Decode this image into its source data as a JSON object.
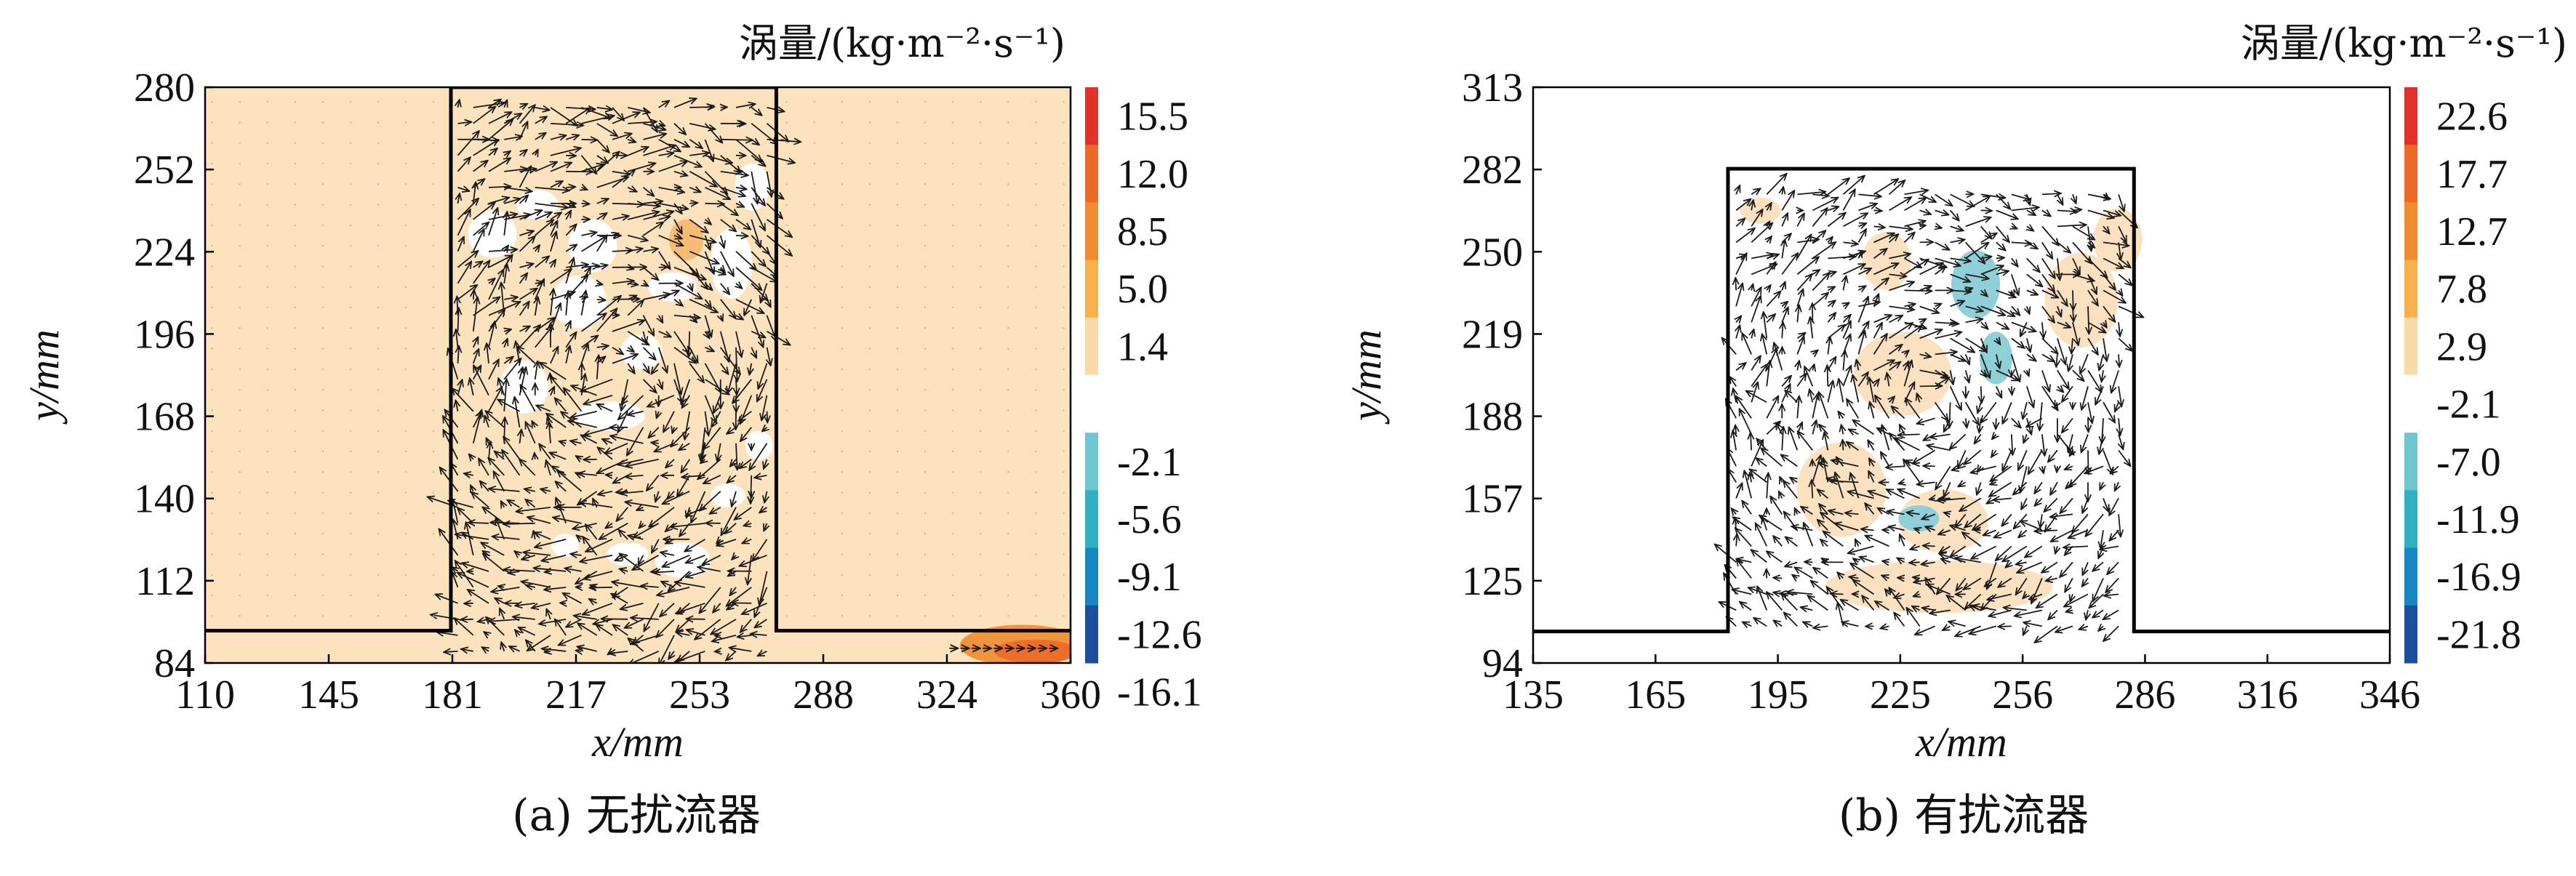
{
  "chart_data": [
    {
      "type": "heatmap",
      "panel": "a",
      "caption": "(a) 无扰流器",
      "xlabel": "x/mm",
      "ylabel": "y/mm",
      "xticks": [
        "110",
        "145",
        "181",
        "217",
        "253",
        "288",
        "324",
        "360"
      ],
      "yticks": [
        "84",
        "112",
        "140",
        "168",
        "196",
        "224",
        "252",
        "280"
      ],
      "xlim": [
        110,
        360
      ],
      "ylim": [
        84,
        280
      ],
      "colorbar_title": "涡量/(kg·m⁻²·s⁻¹)",
      "colorbar_labels": [
        "15.5",
        "12.0",
        "8.5",
        "5.0",
        "1.4",
        "-2.1",
        "-5.6",
        "-9.1",
        "-12.6",
        "-16.1"
      ],
      "colorbar_colors": [
        "#e2312b",
        "#ec6a25",
        "#f08c2e",
        "#f7b04a",
        "#fbd9a6",
        "#ffffff",
        "#6ec6d2",
        "#2fb0c3",
        "#1587c4",
        "#1c4e9e"
      ],
      "background_color": "#fde3bd",
      "cavity_outline_x": [
        110,
        181,
        181,
        275,
        275,
        360
      ],
      "cavity_outline_y": [
        95,
        95,
        280,
        280,
        95,
        95
      ],
      "zero_regions": [
        {
          "x": 193,
          "y": 230,
          "rx": 7,
          "ry": 8
        },
        {
          "x": 206,
          "y": 240,
          "rx": 6,
          "ry": 5
        },
        {
          "x": 222,
          "y": 226,
          "rx": 7,
          "ry": 9
        },
        {
          "x": 218,
          "y": 207,
          "rx": 8,
          "ry": 9
        },
        {
          "x": 202,
          "y": 178,
          "rx": 7,
          "ry": 9
        },
        {
          "x": 227,
          "y": 168,
          "rx": 10,
          "ry": 5
        },
        {
          "x": 236,
          "y": 190,
          "rx": 6,
          "ry": 6
        },
        {
          "x": 245,
          "y": 212,
          "rx": 7,
          "ry": 5
        },
        {
          "x": 262,
          "y": 220,
          "rx": 6,
          "ry": 12
        },
        {
          "x": 268,
          "y": 246,
          "rx": 5,
          "ry": 8
        },
        {
          "x": 232,
          "y": 121,
          "rx": 6,
          "ry": 4
        },
        {
          "x": 248,
          "y": 119,
          "rx": 8,
          "ry": 6
        },
        {
          "x": 214,
          "y": 124,
          "rx": 4,
          "ry": 4
        },
        {
          "x": 261,
          "y": 141,
          "rx": 5,
          "ry": 4
        },
        {
          "x": 270,
          "y": 158,
          "rx": 4,
          "ry": 5
        }
      ],
      "positive_spots": [
        {
          "x": 249,
          "y": 228,
          "rx": 5,
          "ry": 7,
          "color": "#f5b76a"
        },
        {
          "x": 346,
          "y": 90,
          "rx": 18,
          "ry": 7,
          "color": "#f08c2e"
        },
        {
          "x": 350,
          "y": 88,
          "rx": 12,
          "ry": 4,
          "color": "#ec6a25"
        }
      ],
      "vector_region": {
        "x0": 183,
        "x1": 273,
        "y0": 88,
        "y1": 276
      }
    },
    {
      "type": "heatmap",
      "panel": "b",
      "caption": "(b) 有扰流器",
      "xlabel": "x/mm",
      "ylabel": "y/mm",
      "xticks": [
        "135",
        "165",
        "195",
        "225",
        "256",
        "286",
        "316",
        "346"
      ],
      "yticks": [
        "94",
        "125",
        "157",
        "188",
        "219",
        "250",
        "282",
        "313"
      ],
      "xlim": [
        135,
        346
      ],
      "ylim": [
        94,
        313
      ],
      "colorbar_title": "涡量/(kg·m⁻²·s⁻¹)",
      "colorbar_labels": [
        "22.6",
        "17.7",
        "12.7",
        "7.8",
        "2.9",
        "-2.1",
        "-7.0",
        "-11.9",
        "-16.9",
        "-21.8"
      ],
      "colorbar_colors": [
        "#e2312b",
        "#ec6a25",
        "#f08c2e",
        "#f7b04a",
        "#fbd9a6",
        "#ffffff",
        "#6ec6d2",
        "#2fb0c3",
        "#1587c4",
        "#1c4e9e"
      ],
      "background_color": "#ffffff",
      "cavity_outline_x": [
        135,
        183,
        183,
        283,
        283,
        346
      ],
      "cavity_outline_y": [
        106,
        106,
        282,
        282,
        106,
        106
      ],
      "positive_regions": [
        {
          "x": 191,
          "y": 266,
          "rx": 5,
          "ry": 5
        },
        {
          "x": 222,
          "y": 247,
          "rx": 6,
          "ry": 11
        },
        {
          "x": 226,
          "y": 204,
          "rx": 12,
          "ry": 16
        },
        {
          "x": 211,
          "y": 160,
          "rx": 11,
          "ry": 18
        },
        {
          "x": 236,
          "y": 148,
          "rx": 11,
          "ry": 12
        },
        {
          "x": 235,
          "y": 123,
          "rx": 28,
          "ry": 10
        },
        {
          "x": 270,
          "y": 232,
          "rx": 9,
          "ry": 18
        },
        {
          "x": 279,
          "y": 255,
          "rx": 6,
          "ry": 12
        }
      ],
      "negative_regions": [
        {
          "x": 244,
          "y": 238,
          "rx": 6,
          "ry": 13
        },
        {
          "x": 249,
          "y": 210,
          "rx": 4,
          "ry": 10
        },
        {
          "x": 230,
          "y": 149,
          "rx": 5,
          "ry": 5
        }
      ],
      "vector_region": {
        "x0": 185,
        "x1": 281,
        "y0": 108,
        "y1": 278
      }
    }
  ]
}
